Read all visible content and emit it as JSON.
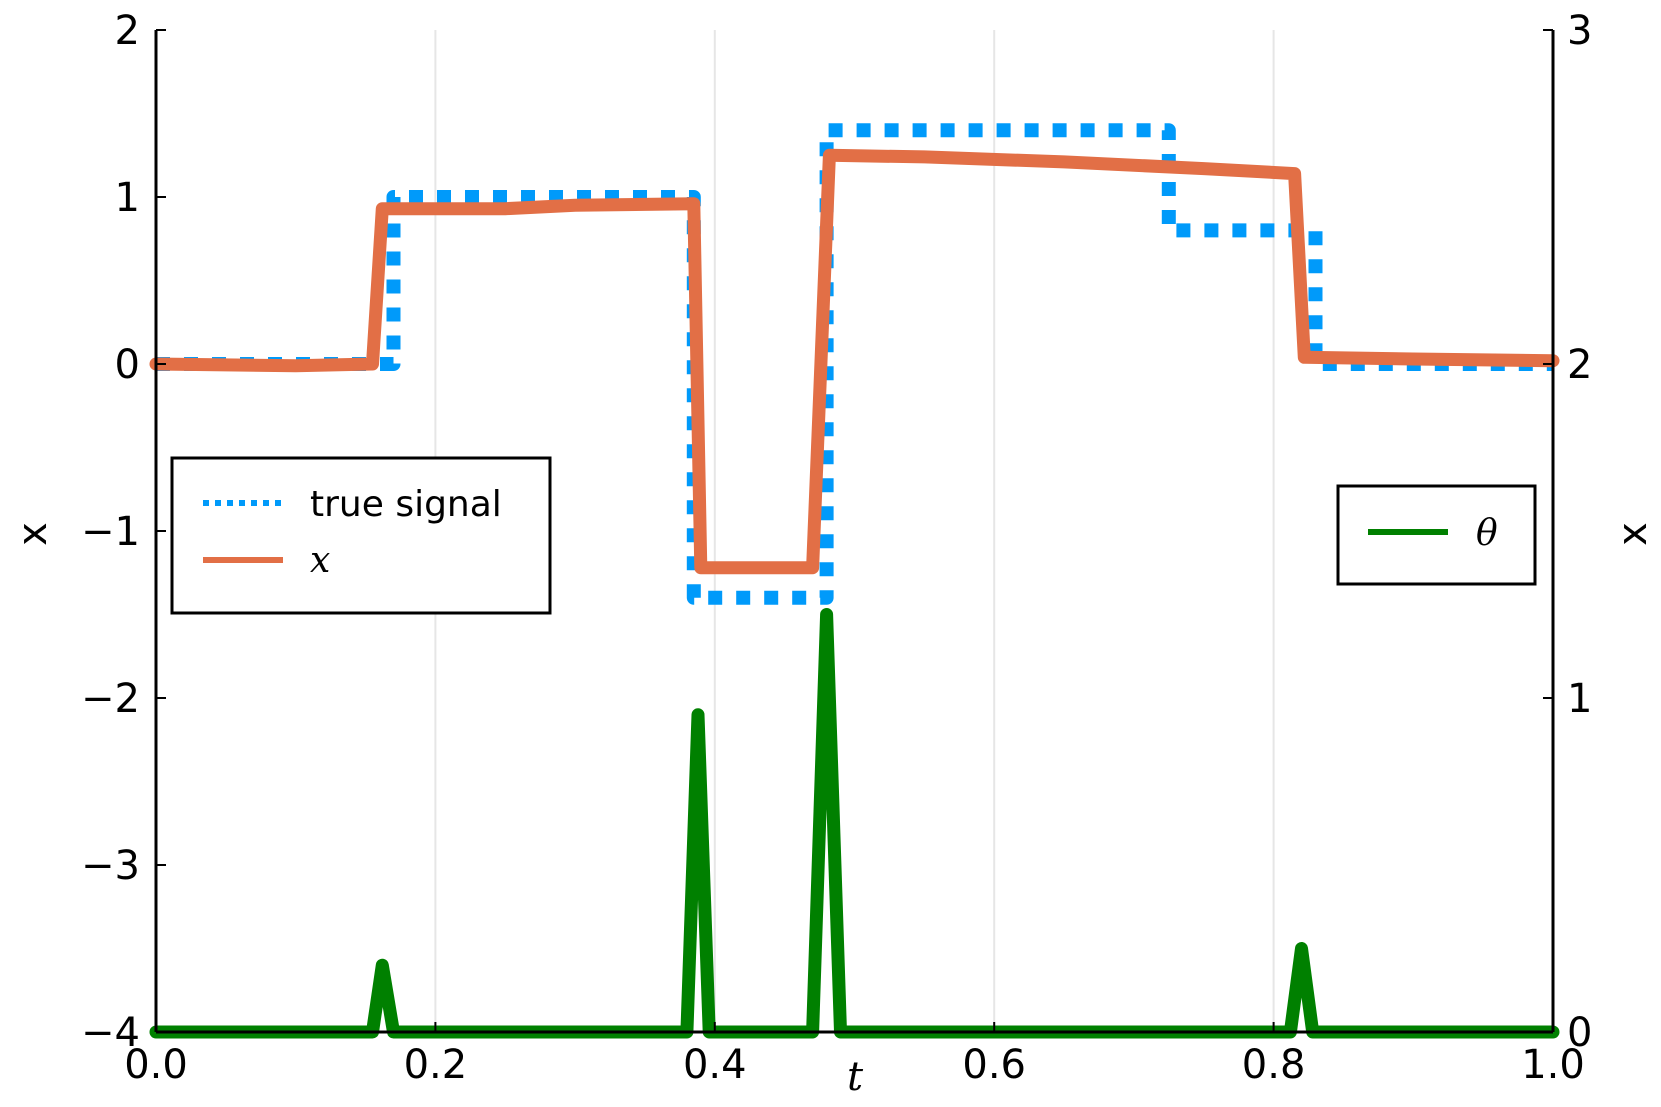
{
  "chart_data": {
    "type": "line",
    "x_axis": {
      "label": "t",
      "range": [
        0.0,
        1.0
      ],
      "ticks": [
        0.0,
        0.2,
        0.4,
        0.6,
        0.8,
        1.0
      ],
      "tick_labels": [
        "0.0",
        "0.2",
        "0.4",
        "0.6",
        "0.8",
        "1.0"
      ],
      "grid": true
    },
    "y_axis_left": {
      "label": "x",
      "range": [
        -4,
        2
      ],
      "ticks": [
        -4,
        -3,
        -2,
        -1,
        0,
        1,
        2
      ],
      "tick_labels": [
        "−4",
        "−3",
        "−2",
        "−1",
        "0",
        "1",
        "2"
      ]
    },
    "y_axis_right": {
      "label": "x",
      "range": [
        0,
        3
      ],
      "ticks": [
        0,
        1,
        2,
        3
      ],
      "tick_labels": [
        "0",
        "1",
        "2",
        "3"
      ]
    },
    "series": [
      {
        "name": "true signal",
        "axis": "left",
        "style": "dotted",
        "color": "#009AFA",
        "x": [
          0.0,
          0.17,
          0.17,
          0.385,
          0.385,
          0.48,
          0.48,
          0.725,
          0.725,
          0.83,
          0.83,
          1.0
        ],
        "y": [
          0.0,
          0.0,
          1.0,
          1.0,
          -1.4,
          -1.4,
          1.4,
          1.4,
          0.8,
          0.8,
          0.0,
          0.0
        ]
      },
      {
        "name": "x",
        "axis": "left",
        "style": "solid",
        "color": "#E26F46",
        "x": [
          0.0,
          0.1,
          0.155,
          0.162,
          0.25,
          0.3,
          0.385,
          0.39,
          0.47,
          0.482,
          0.55,
          0.65,
          0.75,
          0.815,
          0.822,
          0.9,
          1.0
        ],
        "y": [
          0.0,
          -0.01,
          0.0,
          0.93,
          0.93,
          0.95,
          0.96,
          -1.22,
          -1.22,
          1.25,
          1.24,
          1.21,
          1.17,
          1.14,
          0.04,
          0.03,
          0.02
        ]
      },
      {
        "name": "θ",
        "axis": "right",
        "style": "solid",
        "color": "#008000",
        "x": [
          0.0,
          0.155,
          0.162,
          0.17,
          0.38,
          0.388,
          0.396,
          0.47,
          0.48,
          0.49,
          0.812,
          0.82,
          0.828,
          1.0
        ],
        "y": [
          0.0,
          0.0,
          0.2,
          0.0,
          0.0,
          0.95,
          0.0,
          0.0,
          1.25,
          0.0,
          0.0,
          0.25,
          0.0,
          0.0
        ]
      }
    ],
    "legends": [
      {
        "position": "left-center",
        "entries": [
          "true signal",
          "x"
        ]
      },
      {
        "position": "right-center",
        "entries": [
          "θ"
        ]
      }
    ]
  }
}
